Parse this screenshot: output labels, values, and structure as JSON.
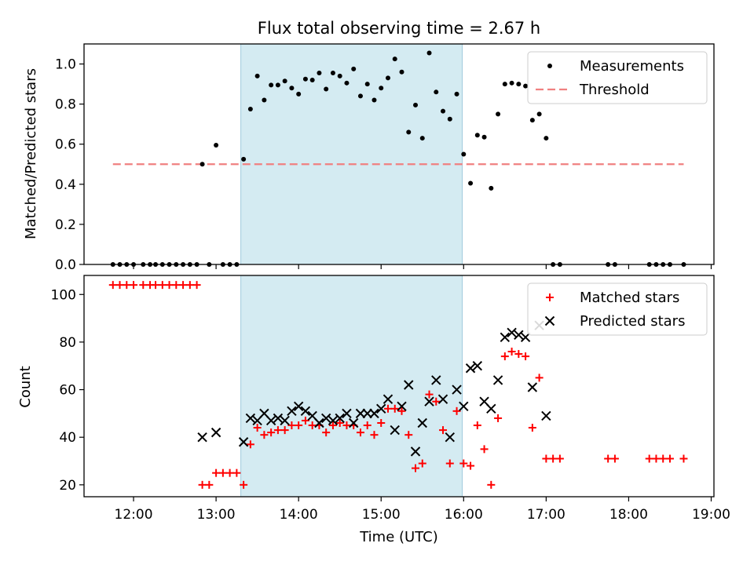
{
  "chart_data": [
    {
      "type": "scatter",
      "title": "Flux total observing time = 2.67 h",
      "xlabel": "",
      "ylabel": "Matched/Predicted stars",
      "xlim": [
        "11:24",
        "19:02"
      ],
      "ylim": [
        0,
        1.1
      ],
      "yticks": [
        "0.0",
        "0.2",
        "0.4",
        "0.6",
        "0.8",
        "1.0"
      ],
      "grid": false,
      "legend_position": "upper right",
      "shaded_interval": {
        "start": "13:18",
        "end": "15:59",
        "color": "#add8e6"
      },
      "threshold": {
        "name": "Threshold",
        "value": 0.5,
        "x_start": "11:45",
        "x_end": "18:40",
        "color": "#f08080"
      },
      "series": [
        {
          "name": "Measurements",
          "marker": "dot",
          "color": "#000000",
          "x": [
            "11:45",
            "11:50",
            "11:55",
            "12:00",
            "12:07",
            "12:12",
            "12:16",
            "12:21",
            "12:26",
            "12:31",
            "12:36",
            "12:41",
            "12:46",
            "12:50",
            "12:55",
            "13:00",
            "13:05",
            "13:10",
            "13:15",
            "13:20",
            "13:25",
            "13:30",
            "13:35",
            "13:40",
            "13:45",
            "13:50",
            "13:55",
            "14:00",
            "14:05",
            "14:10",
            "14:15",
            "14:20",
            "14:25",
            "14:30",
            "14:35",
            "14:40",
            "14:45",
            "14:50",
            "14:55",
            "15:00",
            "15:05",
            "15:10",
            "15:15",
            "15:20",
            "15:25",
            "15:30",
            "15:35",
            "15:40",
            "15:45",
            "15:50",
            "15:55",
            "16:00",
            "16:05",
            "16:10",
            "16:15",
            "16:20",
            "16:25",
            "16:30",
            "16:35",
            "16:40",
            "16:45",
            "16:50",
            "16:55",
            "17:00",
            "17:05",
            "17:10",
            "17:45",
            "17:50",
            "18:15",
            "18:20",
            "18:25",
            "18:30",
            "18:40"
          ],
          "y": [
            0,
            0,
            0,
            0,
            0,
            0,
            0,
            0,
            0,
            0,
            0,
            0,
            0,
            0.5,
            0,
            0.595,
            0,
            0,
            0,
            0.525,
            0.775,
            0.94,
            0.82,
            0.895,
            0.895,
            0.915,
            0.88,
            0.85,
            0.925,
            0.92,
            0.955,
            0.875,
            0.955,
            0.94,
            0.905,
            0.975,
            0.84,
            0.9,
            0.82,
            0.88,
            0.93,
            1.025,
            0.96,
            0.66,
            0.795,
            0.63,
            1.055,
            0.86,
            0.765,
            0.725,
            0.85,
            0.55,
            0.405,
            0.645,
            0.635,
            0.38,
            0.75,
            0.9,
            0.905,
            0.9,
            0.89,
            0.72,
            0.75,
            0.63,
            0,
            0,
            0,
            0,
            0,
            0,
            0,
            0,
            0
          ]
        }
      ]
    },
    {
      "type": "scatter",
      "title": "",
      "xlabel": "Time (UTC)",
      "ylabel": "Count",
      "xlim": [
        "11:24",
        "19:02"
      ],
      "ylim": [
        15,
        108
      ],
      "xticks": [
        "12:00",
        "13:00",
        "14:00",
        "15:00",
        "16:00",
        "17:00",
        "18:00",
        "19:00"
      ],
      "yticks": [
        "20",
        "40",
        "60",
        "80",
        "100"
      ],
      "grid": false,
      "legend_position": "upper right",
      "shaded_interval": {
        "start": "13:18",
        "end": "15:59",
        "color": "#add8e6"
      },
      "series": [
        {
          "name": "Matched stars",
          "marker": "plus",
          "color": "#ff0000",
          "x": [
            "11:45",
            "11:50",
            "11:55",
            "12:00",
            "12:07",
            "12:12",
            "12:16",
            "12:21",
            "12:26",
            "12:31",
            "12:36",
            "12:41",
            "12:46",
            "12:50",
            "12:55",
            "13:00",
            "13:05",
            "13:10",
            "13:15",
            "13:20",
            "13:25",
            "13:30",
            "13:35",
            "13:40",
            "13:45",
            "13:50",
            "13:55",
            "14:00",
            "14:05",
            "14:10",
            "14:15",
            "14:20",
            "14:25",
            "14:30",
            "14:35",
            "14:40",
            "14:45",
            "14:50",
            "14:55",
            "15:00",
            "15:05",
            "15:10",
            "15:15",
            "15:20",
            "15:25",
            "15:30",
            "15:35",
            "15:40",
            "15:45",
            "15:50",
            "15:55",
            "16:00",
            "16:05",
            "16:10",
            "16:15",
            "16:20",
            "16:25",
            "16:30",
            "16:35",
            "16:40",
            "16:45",
            "16:50",
            "16:55",
            "17:00",
            "17:05",
            "17:10",
            "17:45",
            "17:50",
            "18:15",
            "18:20",
            "18:25",
            "18:30",
            "18:40"
          ],
          "y": [
            104,
            104,
            104,
            104,
            104,
            104,
            104,
            104,
            104,
            104,
            104,
            104,
            104,
            20,
            20,
            25,
            25,
            25,
            25,
            20,
            37,
            44,
            41,
            42,
            43,
            43,
            45,
            45,
            47,
            45,
            45,
            42,
            45,
            46,
            45,
            45,
            42,
            45,
            41,
            46,
            52,
            52,
            51,
            41,
            27,
            29,
            58,
            55,
            43,
            29,
            51,
            29,
            28,
            45,
            35,
            20,
            48,
            74,
            76,
            75,
            74,
            44,
            65,
            31,
            31,
            31,
            31,
            31,
            31,
            31,
            31,
            31,
            31
          ]
        },
        {
          "name": "Predicted stars",
          "marker": "x",
          "color": "#000000",
          "x": [
            "12:50",
            "13:00",
            "13:20",
            "13:25",
            "13:30",
            "13:35",
            "13:40",
            "13:45",
            "13:50",
            "13:55",
            "14:00",
            "14:05",
            "14:10",
            "14:15",
            "14:20",
            "14:25",
            "14:30",
            "14:35",
            "14:40",
            "14:45",
            "14:50",
            "14:55",
            "15:00",
            "15:05",
            "15:10",
            "15:15",
            "15:20",
            "15:25",
            "15:30",
            "15:35",
            "15:40",
            "15:45",
            "15:50",
            "15:55",
            "16:00",
            "16:05",
            "16:10",
            "16:15",
            "16:20",
            "16:25",
            "16:30",
            "16:35",
            "16:40",
            "16:45",
            "16:50",
            "16:55",
            "17:00"
          ],
          "y": [
            40,
            42,
            38,
            48,
            47,
            50,
            47,
            48,
            47,
            51,
            53,
            51,
            49,
            46,
            48,
            47,
            48,
            50,
            46,
            50,
            50,
            50,
            52,
            56,
            43,
            53,
            62,
            34,
            46,
            55,
            64,
            56,
            40,
            60,
            53,
            69,
            70,
            55,
            52,
            64,
            82,
            84,
            83,
            82,
            61,
            87,
            49
          ]
        }
      ]
    }
  ]
}
